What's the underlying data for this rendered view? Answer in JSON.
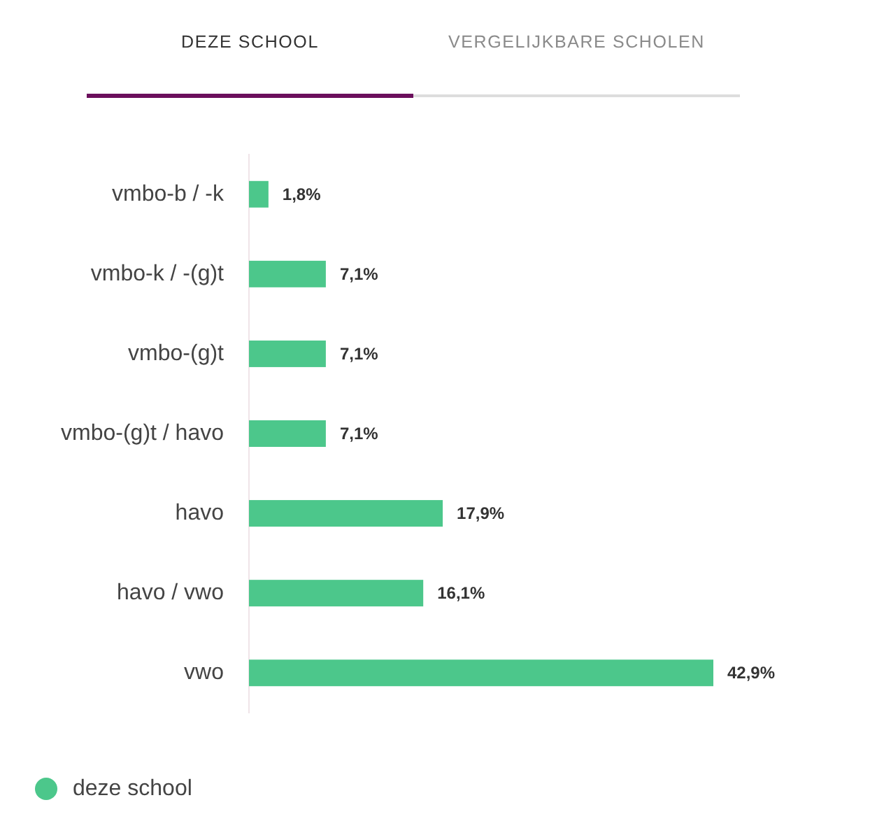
{
  "chart_data": {
    "type": "bar",
    "orientation": "horizontal",
    "annotations": [
      "DEZE SCHOOL",
      "VERGELIJKBARE SCHOLEN"
    ],
    "categories": [
      "vmbo-b / -k",
      "vmbo-k / -(g)t",
      "vmbo-(g)t",
      "vmbo-(g)t / havo",
      "havo",
      "havo / vwo",
      "vwo"
    ],
    "series": [
      {
        "name": "deze school",
        "color": "#4cc78b",
        "values": [
          1.8,
          7.1,
          7.1,
          7.1,
          17.9,
          16.1,
          42.9
        ],
        "value_labels": [
          "1,8%",
          "7,1%",
          "7,1%",
          "7,1%",
          "17,9%",
          "16,1%",
          "42,9%"
        ]
      }
    ],
    "legend": "bottom left"
  }
}
